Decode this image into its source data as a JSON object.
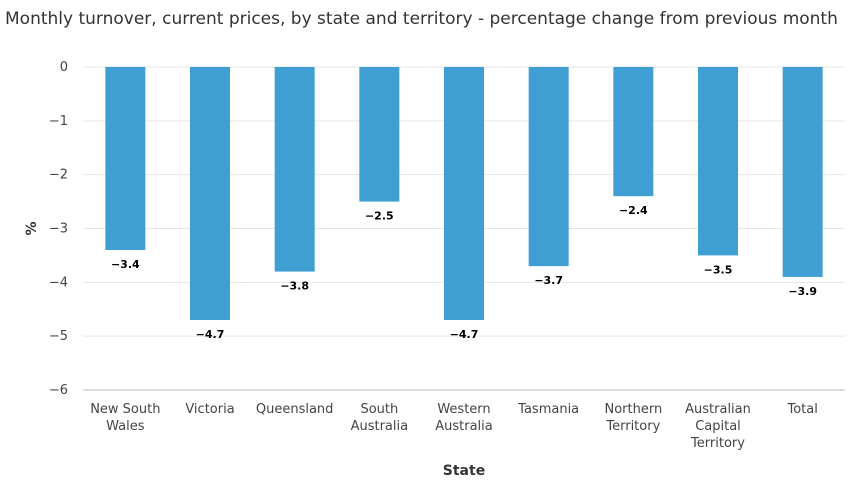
{
  "chart_data": {
    "type": "bar",
    "title": "Monthly turnover, current prices, by state and territory - percentage change from previous month",
    "xlabel": "State",
    "ylabel": "%",
    "ylim": [
      -6,
      0
    ],
    "yticks": [
      0,
      -1,
      -2,
      -3,
      -4,
      -5,
      -6
    ],
    "ytick_labels": [
      "0",
      "−1",
      "−2",
      "−3",
      "−4",
      "−5",
      "−6"
    ],
    "grid": true,
    "legend": "none",
    "bar_color": "#3f9fd3",
    "categories": [
      [
        "New South",
        "Wales"
      ],
      [
        "Victoria"
      ],
      [
        "Queensland"
      ],
      [
        "South",
        "Australia"
      ],
      [
        "Western",
        "Australia"
      ],
      [
        "Tasmania"
      ],
      [
        "Northern",
        "Territory"
      ],
      [
        "Australian",
        "Capital",
        "Territory"
      ],
      [
        "Total"
      ]
    ],
    "values": [
      -3.4,
      -4.7,
      -3.8,
      -2.5,
      -4.7,
      -3.7,
      -2.4,
      -3.5,
      -3.9
    ],
    "value_labels": [
      "−3.4",
      "−4.7",
      "−3.8",
      "−2.5",
      "−4.7",
      "−3.7",
      "−2.4",
      "−3.5",
      "−3.9"
    ]
  }
}
